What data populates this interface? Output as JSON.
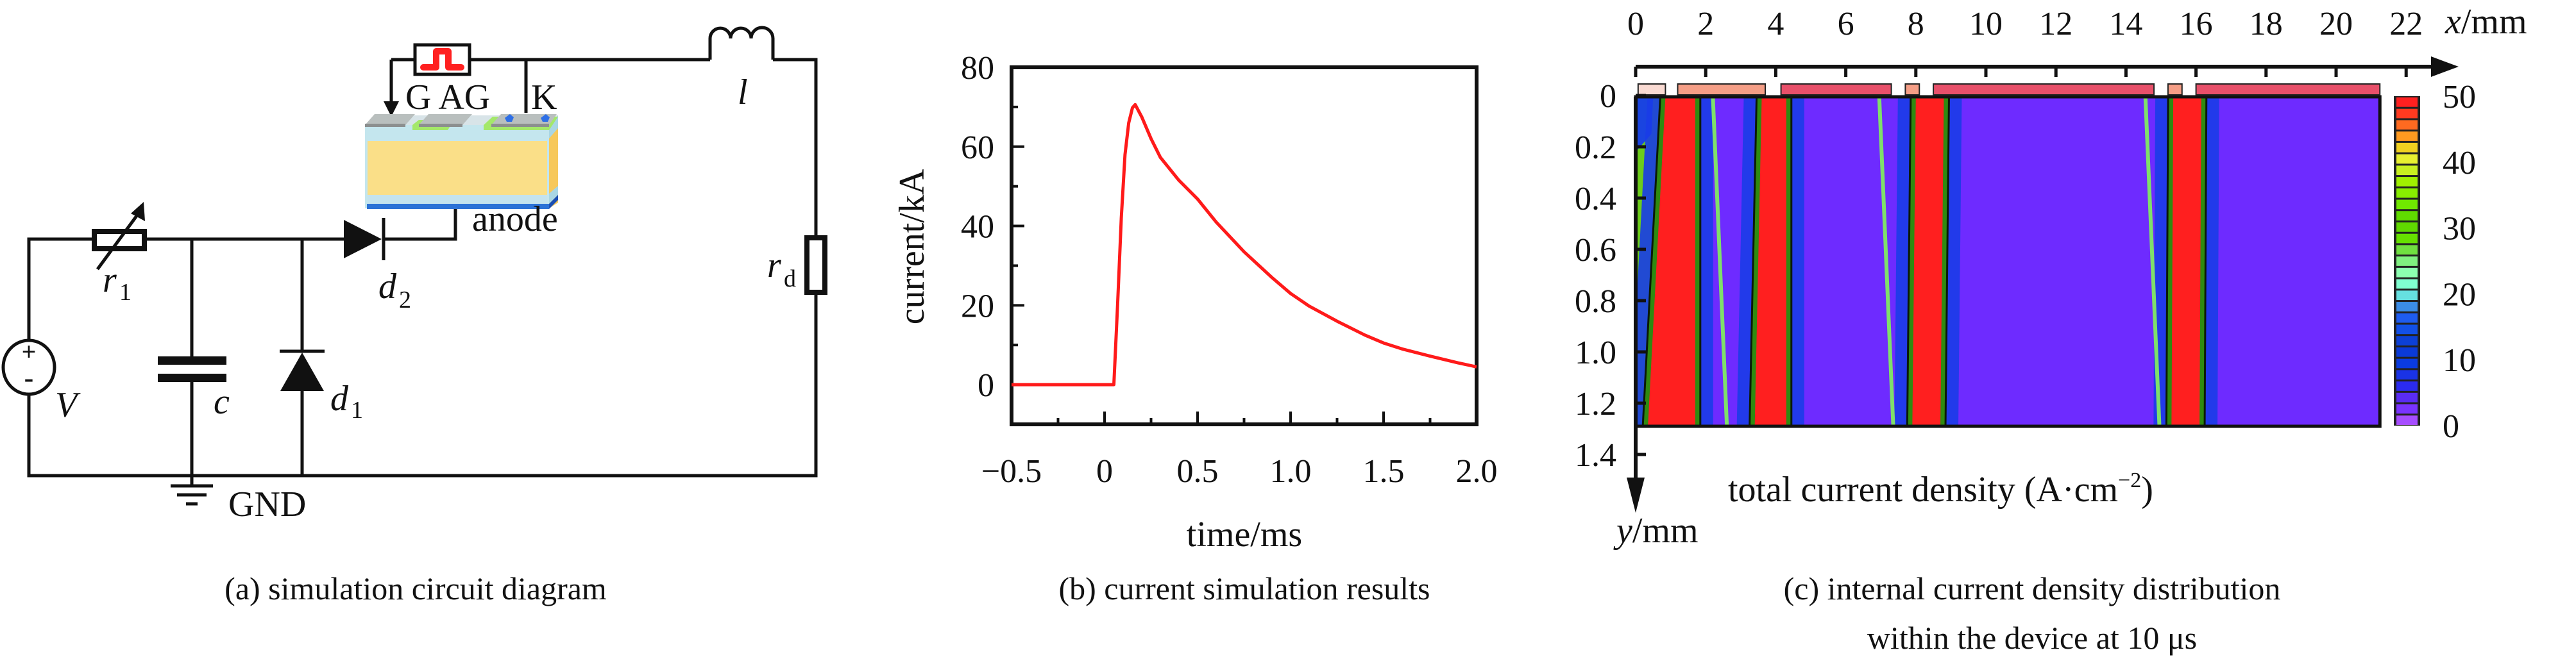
{
  "figure": {
    "panels": [
      {
        "id": "a",
        "caption": "(a) simulation circuit diagram",
        "type": "circuit-diagram",
        "labels": {
          "source": "V",
          "source_plus": "+",
          "source_minus": "-",
          "variable_resistor": "r",
          "variable_resistor_sub": "1",
          "capacitor": "c",
          "diode1": "d",
          "diode1_sub": "1",
          "diode2": "d",
          "diode2_sub": "2",
          "inductor": "l",
          "load_resistor": "r",
          "load_resistor_sub": "d",
          "ground": "GND",
          "anode": "anode",
          "terminals": "G AG",
          "cathode": "K"
        },
        "icons": [
          "voltage-source-icon",
          "variable-resistor-icon",
          "capacitor-icon",
          "diode-icon",
          "inductor-icon",
          "resistor-icon",
          "ground-icon",
          "pulse-generator-icon",
          "device-cross-section"
        ]
      }
    ]
  },
  "chart_data": [
    {
      "id": "b",
      "type": "line",
      "caption": "(b) current simulation results",
      "title": "",
      "xlabel": "time/ms",
      "ylabel": "current/kA",
      "xlim": [
        -0.5,
        2.0
      ],
      "ylim": [
        -10,
        80
      ],
      "xticks": [
        -0.5,
        0,
        0.5,
        1.0,
        1.5,
        2.0
      ],
      "xtick_labels": [
        "−0.5",
        "0",
        "0.5",
        "1.0",
        "1.5",
        "2.0"
      ],
      "yticks": [
        0,
        20,
        40,
        60,
        80
      ],
      "ytick_labels": [
        "0",
        "20",
        "40",
        "60",
        "80"
      ],
      "grid": false,
      "legend": "none",
      "series": [
        {
          "name": "current",
          "color": "#ff1a1a",
          "x": [
            -0.5,
            0.0,
            0.05,
            0.07,
            0.09,
            0.11,
            0.13,
            0.15,
            0.165,
            0.2,
            0.25,
            0.3,
            0.4,
            0.5,
            0.6,
            0.75,
            0.9,
            1.0,
            1.1,
            1.25,
            1.4,
            1.5,
            1.6,
            1.75,
            1.9,
            2.0
          ],
          "y": [
            0,
            0,
            0,
            20,
            42,
            58,
            66,
            69.8,
            70.6,
            67.5,
            62,
            57.3,
            51.5,
            46.8,
            41,
            33.5,
            27,
            23,
            19.8,
            16,
            12.5,
            10.5,
            9.0,
            7.2,
            5.5,
            4.5
          ]
        }
      ]
    },
    {
      "id": "c",
      "type": "heatmap",
      "caption_line1": "(c) internal current density distribution",
      "caption_line2": "within the device at 10 μs",
      "title": "",
      "xlabel_var": "x",
      "xlabel_unit": "/mm",
      "ylabel_var": "y",
      "ylabel_unit": "/mm",
      "colorbar_label": "total current density (A·cm",
      "colorbar_label_exp": "−2",
      "colorbar_label_close": ")",
      "xlim": [
        0,
        22
      ],
      "ylim": [
        0,
        1.4
      ],
      "xticks": [
        0,
        2,
        4,
        6,
        8,
        10,
        12,
        14,
        16,
        18,
        20,
        22
      ],
      "xtick_labels": [
        "0",
        "2",
        "4",
        "6",
        "8",
        "10",
        "12",
        "14",
        "16",
        "18",
        "20",
        "22"
      ],
      "yticks": [
        0,
        0.2,
        0.4,
        0.6,
        0.8,
        1.0,
        1.2,
        1.4
      ],
      "ytick_labels": [
        "0",
        "0.2",
        "0.4",
        "0.6",
        "0.8",
        "1.0",
        "1.2",
        "1.4"
      ],
      "domain_extent_mm": {
        "x": [
          0,
          21.25
        ],
        "y": [
          0,
          1.29
        ]
      },
      "colorbar": {
        "range": [
          0,
          50
        ],
        "ticks": [
          0,
          10,
          20,
          30,
          40,
          50
        ],
        "tick_labels": [
          "0",
          "10",
          "20",
          "30",
          "40",
          "50"
        ],
        "levels": [
          "#a64dff",
          "#7a33ff",
          "#5a2cf2",
          "#2b2bf0",
          "#1a33e6",
          "#0a3be0",
          "#0a3ad8",
          "#0c40d6",
          "#1250e8",
          "#1e5cf0",
          "#3b8ce6",
          "#66e0e0",
          "#80ffd0",
          "#8cffb0",
          "#80f080",
          "#70e040",
          "#66e000",
          "#60d800",
          "#60dc00",
          "#70e800",
          "#88ee00",
          "#a0f000",
          "#c8f020",
          "#e8f030",
          "#f0d020",
          "#ff9a20",
          "#ff6a20",
          "#ff3a20",
          "#ff2020"
        ]
      },
      "background_value": 3,
      "background_color": "#6e2bff",
      "high_color": "#ff1f1f",
      "surface_electrodes": [
        {
          "x0": 0.07,
          "x1": 0.85,
          "color": "#f9dad2"
        },
        {
          "x0": 1.2,
          "x1": 3.7,
          "color": "#f59e86"
        },
        {
          "x0": 4.15,
          "x1": 7.3,
          "color": "#e8506a"
        },
        {
          "x0": 7.7,
          "x1": 8.1,
          "color": "#f59e86"
        },
        {
          "x0": 8.5,
          "x1": 14.8,
          "color": "#e8506a"
        },
        {
          "x0": 15.2,
          "x1": 15.6,
          "color": "#f59e86"
        },
        {
          "x0": 16.0,
          "x1": 21.25,
          "color": "#e8506a"
        }
      ],
      "current_filaments": [
        {
          "name": "filament-1",
          "x_top": [
            0.85,
            1.7
          ],
          "x_bottom": [
            0.35,
            1.7
          ],
          "value": 50
        },
        {
          "name": "filament-2",
          "x_top": [
            3.6,
            4.3
          ],
          "x_bottom": [
            3.4,
            4.3
          ],
          "value": 50
        },
        {
          "name": "filament-3",
          "x_top": [
            8.0,
            8.8
          ],
          "x_bottom": [
            7.9,
            8.7
          ],
          "value": 50
        },
        {
          "name": "filament-4",
          "x_top": [
            15.35,
            16.15
          ],
          "x_bottom": [
            15.3,
            16.1
          ],
          "value": 50
        }
      ],
      "edge_region": {
        "x": [
          0.0,
          0.9
        ],
        "color": "#6ccd1a"
      }
    }
  ]
}
